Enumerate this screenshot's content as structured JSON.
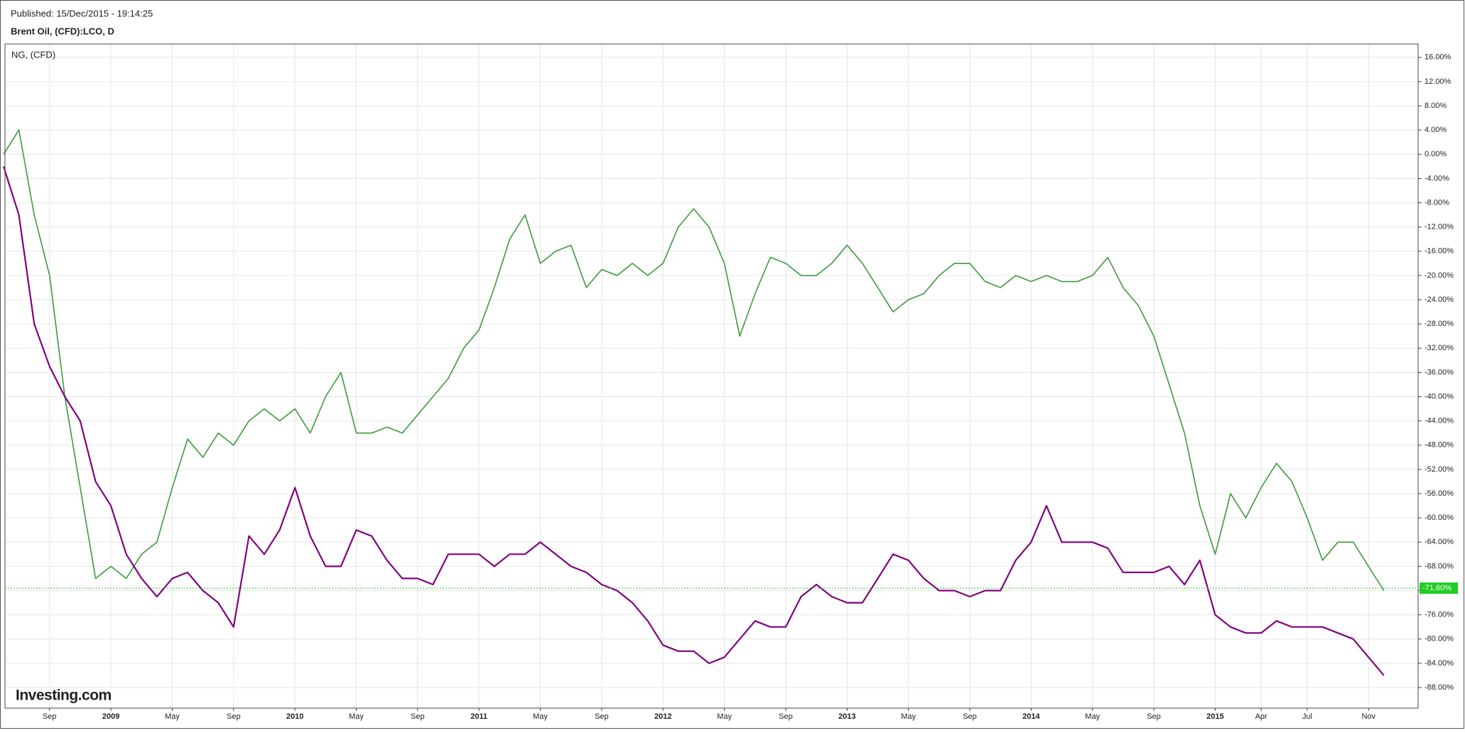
{
  "chart_data": {
    "type": "line",
    "subtitle": "Published: 15/Dec/2015 - 19:14:25",
    "brand": "Investing.com",
    "x": [
      "2008-06",
      "2008-07",
      "2008-08",
      "2008-09",
      "2008-10",
      "2008-11",
      "2008-12",
      "2009-01",
      "2009-02",
      "2009-03",
      "2009-04",
      "2009-05",
      "2009-06",
      "2009-07",
      "2009-08",
      "2009-09",
      "2009-10",
      "2009-11",
      "2009-12",
      "2010-01",
      "2010-02",
      "2010-03",
      "2010-04",
      "2010-05",
      "2010-06",
      "2010-07",
      "2010-08",
      "2010-09",
      "2010-10",
      "2010-11",
      "2010-12",
      "2011-01",
      "2011-02",
      "2011-03",
      "2011-04",
      "2011-05",
      "2011-06",
      "2011-07",
      "2011-08",
      "2011-09",
      "2011-10",
      "2011-11",
      "2011-12",
      "2012-01",
      "2012-02",
      "2012-03",
      "2012-04",
      "2012-05",
      "2012-06",
      "2012-07",
      "2012-08",
      "2012-09",
      "2012-10",
      "2012-11",
      "2012-12",
      "2013-01",
      "2013-02",
      "2013-03",
      "2013-04",
      "2013-05",
      "2013-06",
      "2013-07",
      "2013-08",
      "2013-09",
      "2013-10",
      "2013-11",
      "2013-12",
      "2014-01",
      "2014-02",
      "2014-03",
      "2014-04",
      "2014-05",
      "2014-06",
      "2014-07",
      "2014-08",
      "2014-09",
      "2014-10",
      "2014-11",
      "2014-12",
      "2015-01",
      "2015-02",
      "2015-03",
      "2015-04",
      "2015-05",
      "2015-06",
      "2015-07",
      "2015-08",
      "2015-09",
      "2015-10",
      "2015-11",
      "2015-12"
    ],
    "series": [
      {
        "name": "Brent Oil, (CFD):LCO, D",
        "color": "#3c9a3c",
        "values": [
          0,
          4,
          -10,
          -20,
          -40,
          -55,
          -70,
          -68,
          -70,
          -66,
          -64,
          -55,
          -47,
          -50,
          -46,
          -48,
          -44,
          -42,
          -44,
          -42,
          -46,
          -40,
          -36,
          -46,
          -46,
          -45,
          -46,
          -43,
          -40,
          -37,
          -32,
          -29,
          -22,
          -14,
          -10,
          -18,
          -16,
          -15,
          -22,
          -19,
          -20,
          -18,
          -20,
          -18,
          -12,
          -9,
          -12,
          -18,
          -30,
          -23,
          -17,
          -18,
          -20,
          -20,
          -18,
          -15,
          -18,
          -22,
          -26,
          -24,
          -23,
          -20,
          -18,
          -18,
          -21,
          -22,
          -20,
          -21,
          -20,
          -21,
          -21,
          -20,
          -17,
          -22,
          -25,
          -30,
          -38,
          -46,
          -58,
          -66,
          -56,
          -60,
          -55,
          -51,
          -54,
          -60,
          -67,
          -64,
          -64,
          -68,
          -72
        ]
      },
      {
        "name": "NG,  (CFD)",
        "color": "#800080",
        "values": [
          -2,
          -10,
          -28,
          -35,
          -40,
          -44,
          -54,
          -58,
          -66,
          -70,
          -73,
          -70,
          -69,
          -72,
          -74,
          -78,
          -63,
          -66,
          -62,
          -55,
          -63,
          -68,
          -68,
          -62,
          -63,
          -67,
          -70,
          -70,
          -71,
          -66,
          -66,
          -66,
          -68,
          -66,
          -66,
          -64,
          -66,
          -68,
          -69,
          -71,
          -72,
          -74,
          -77,
          -81,
          -82,
          -82,
          -84,
          -83,
          -80,
          -77,
          -78,
          -78,
          -73,
          -71,
          -73,
          -74,
          -74,
          -70,
          -66,
          -67,
          -70,
          -72,
          -72,
          -73,
          -72,
          -72,
          -67,
          -64,
          -58,
          -64,
          -64,
          -64,
          -65,
          -69,
          -69,
          -69,
          -68,
          -71,
          -67,
          -76,
          -78,
          -79,
          -79,
          -77,
          -78,
          -78,
          -78,
          -79,
          -80,
          -83,
          -86
        ]
      }
    ],
    "current": {
      "value": -71.6,
      "label": "-71.60%",
      "color": "#22cc22"
    },
    "xlim": [
      "2008-06",
      "2016-02"
    ],
    "xticks": [
      {
        "value": "2008-09",
        "label": "Sep"
      },
      {
        "value": "2009-01",
        "label": "2009"
      },
      {
        "value": "2009-05",
        "label": "May"
      },
      {
        "value": "2009-09",
        "label": "Sep"
      },
      {
        "value": "2010-01",
        "label": "2010"
      },
      {
        "value": "2010-05",
        "label": "May"
      },
      {
        "value": "2010-09",
        "label": "Sep"
      },
      {
        "value": "2011-01",
        "label": "2011"
      },
      {
        "value": "2011-05",
        "label": "May"
      },
      {
        "value": "2011-09",
        "label": "Sep"
      },
      {
        "value": "2012-01",
        "label": "2012"
      },
      {
        "value": "2012-05",
        "label": "May"
      },
      {
        "value": "2012-09",
        "label": "Sep"
      },
      {
        "value": "2013-01",
        "label": "2013"
      },
      {
        "value": "2013-05",
        "label": "May"
      },
      {
        "value": "2013-09",
        "label": "Sep"
      },
      {
        "value": "2014-01",
        "label": "2014"
      },
      {
        "value": "2014-05",
        "label": "May"
      },
      {
        "value": "2014-09",
        "label": "Sep"
      },
      {
        "value": "2015-01",
        "label": "2015"
      },
      {
        "value": "2015-04",
        "label": "Apr"
      },
      {
        "value": "2015-07",
        "label": "Jul"
      },
      {
        "value": "2015-11",
        "label": "Nov"
      }
    ],
    "ylim": [
      -91.4,
      18.2
    ],
    "yticks": [
      {
        "value": 16,
        "label": "16.00%"
      },
      {
        "value": 12,
        "label": "12.00%"
      },
      {
        "value": 8,
        "label": "8.00%"
      },
      {
        "value": 4,
        "label": "4.00%"
      },
      {
        "value": 0,
        "label": "0.00%"
      },
      {
        "value": -4,
        "label": "-4.00%"
      },
      {
        "value": -8,
        "label": "-8.00%"
      },
      {
        "value": -12,
        "label": "-12.00%"
      },
      {
        "value": -16,
        "label": "-16.00%"
      },
      {
        "value": -20,
        "label": "-20.00%"
      },
      {
        "value": -24,
        "label": "-24.00%"
      },
      {
        "value": -28,
        "label": "-28.00%"
      },
      {
        "value": -32,
        "label": "-32.00%"
      },
      {
        "value": -36,
        "label": "-36.00%"
      },
      {
        "value": -40,
        "label": "-40.00%"
      },
      {
        "value": -44,
        "label": "-44.00%"
      },
      {
        "value": -48,
        "label": "-48.00%"
      },
      {
        "value": -52,
        "label": "-52.00%"
      },
      {
        "value": -56,
        "label": "-56.00%"
      },
      {
        "value": -60,
        "label": "-60.00%"
      },
      {
        "value": -64,
        "label": "-64.00%"
      },
      {
        "value": -68,
        "label": "-68.00%"
      },
      {
        "value": -72,
        "label": "-72.00%"
      },
      {
        "value": -76,
        "label": "-76.00%"
      },
      {
        "value": -80,
        "label": "-80.00%"
      },
      {
        "value": -84,
        "label": "-84.00%"
      },
      {
        "value": -88,
        "label": "-88.00%"
      }
    ],
    "grid": true
  }
}
